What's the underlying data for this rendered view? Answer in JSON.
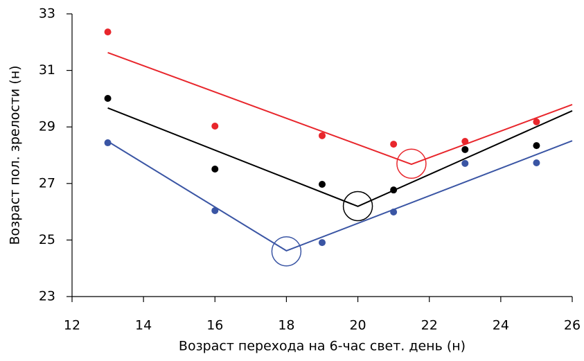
{
  "chart_data": {
    "type": "scatter",
    "x_label": "Возраст перехода на 6-час свет. день (н)",
    "y_label": "Возраст пол. зрелости (н)",
    "x": [
      13,
      16,
      19,
      21,
      23,
      25
    ],
    "xlim": [
      12,
      26
    ],
    "xticks": [
      12,
      14,
      16,
      18,
      20,
      22,
      24,
      26
    ],
    "ylim": [
      23,
      33
    ],
    "yticks": [
      23,
      25,
      27,
      29,
      31,
      33
    ],
    "grid": false,
    "series": [
      {
        "color": "#e8262c",
        "values": [
          32.36,
          29.03,
          28.69,
          28.39,
          28.49,
          29.18
        ],
        "fit_x": [
          13,
          21.5,
          26
        ],
        "fit_values": [
          31.63,
          27.68,
          29.79
        ],
        "breakpoint": [
          21.5,
          27.7
        ]
      },
      {
        "color": "#000000",
        "values": [
          30.01,
          27.51,
          26.97,
          26.77,
          28.2,
          28.34
        ],
        "fit_x": [
          13,
          20,
          26
        ],
        "fit_values": [
          29.67,
          26.19,
          29.57
        ],
        "breakpoint": [
          20,
          26.2
        ]
      },
      {
        "color": "#3a55a4",
        "values": [
          28.44,
          26.04,
          24.91,
          25.99,
          27.71,
          27.73
        ],
        "fit_x": [
          13,
          18,
          26
        ],
        "fit_values": [
          28.49,
          24.62,
          28.51
        ],
        "breakpoint": [
          18,
          24.6
        ]
      }
    ]
  }
}
